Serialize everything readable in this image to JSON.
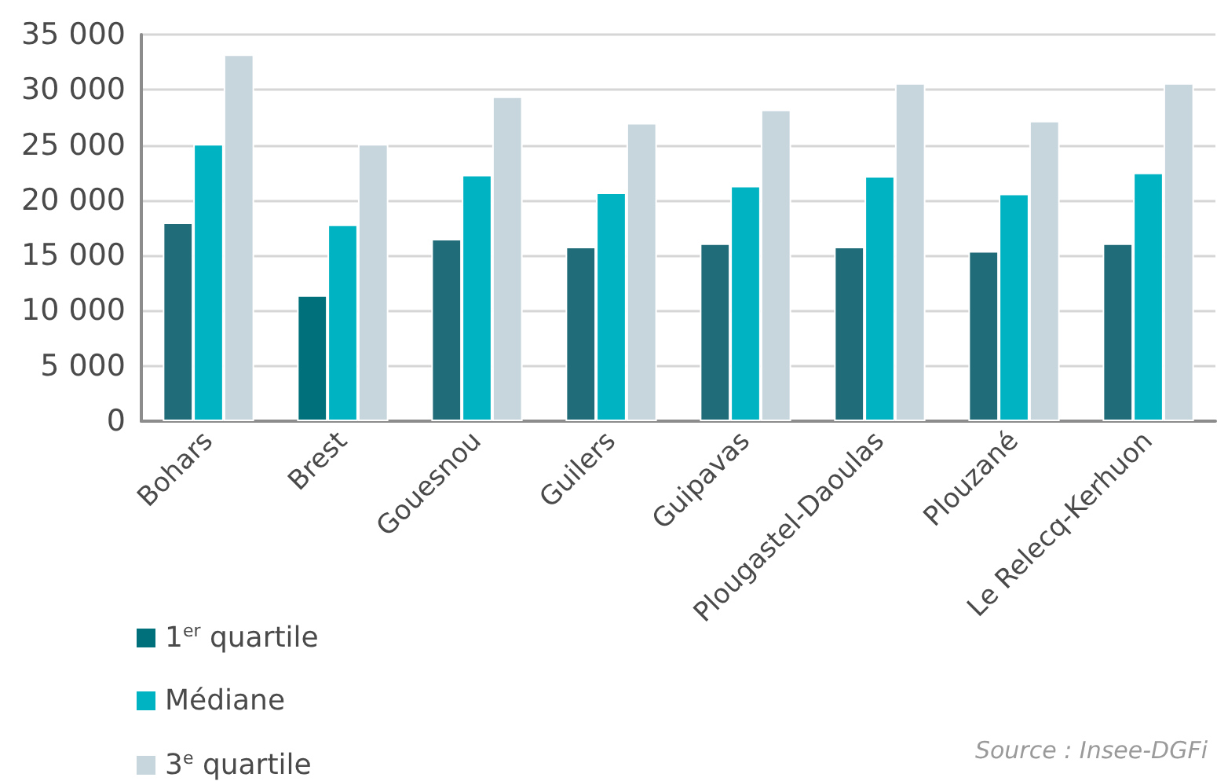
{
  "chart_data": {
    "type": "bar",
    "categories": [
      "Bohars",
      "Brest",
      "Gouesnou",
      "Guilers",
      "Guipavas",
      "Plougastel-Daoulas",
      "Plouzané",
      "Le Relecq-Kerhuon"
    ],
    "series": [
      {
        "name": "1$^{er}$ quartile",
        "color": "#00717b",
        "colors": [
          "#206d79",
          "#00717b",
          "#206d79",
          "#206d79",
          "#206d79",
          "#206d79",
          "#206d79",
          "#206d79"
        ],
        "values": [
          18000,
          11400,
          16500,
          15800,
          16100,
          15800,
          15400,
          16100
        ]
      },
      {
        "name": "Médiane",
        "color": "#00b3c2",
        "values": [
          25100,
          17800,
          22300,
          20700,
          21300,
          22200,
          20600,
          22500
        ]
      },
      {
        "name": "3$^{e}$ quartile",
        "color": "#c7d5dc",
        "values": [
          33200,
          25100,
          29400,
          27000,
          28200,
          30600,
          27200,
          30600
        ]
      }
    ],
    "ylim": [
      0,
      35000
    ],
    "yticks": [
      0,
      {
        "value": 5000,
        "label": "5 000"
      },
      {
        "value": 10000,
        "label": "10 000"
      },
      {
        "value": 15000,
        "label": "15 000"
      },
      {
        "value": 20000,
        "label": "20 000"
      },
      {
        "value": 25000,
        "label": "25 000"
      },
      {
        "value": 30000,
        "label": "30 000"
      },
      {
        "value": 35000,
        "label": "35 000"
      }
    ],
    "grid": "y",
    "legend": "bottom left",
    "annotations": [
      "Source : Insee-DGFi"
    ]
  }
}
